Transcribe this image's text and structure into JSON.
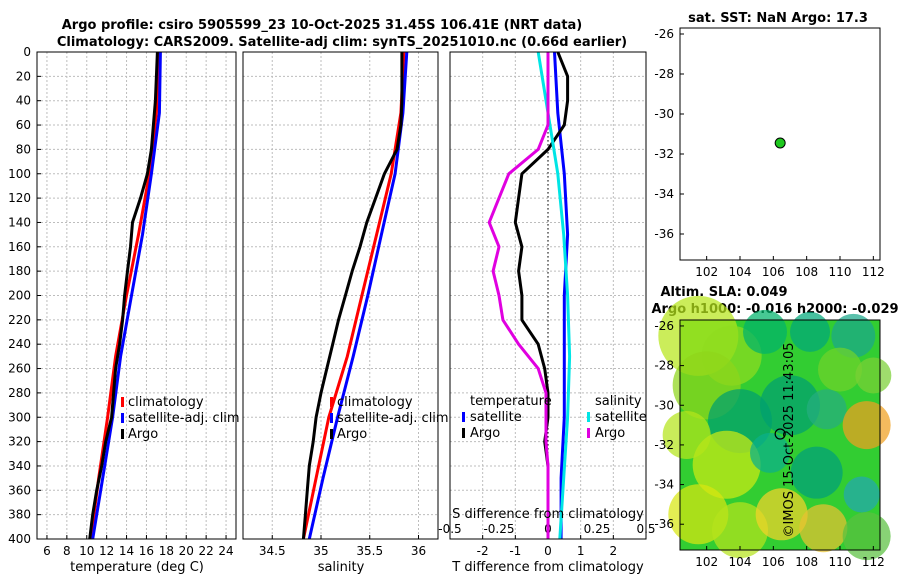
{
  "title": {
    "line1": "Argo profile: csiro 5905599_23 10-Oct-2025 31.45S 106.41E (NRT data)",
    "line2": "Climatology: CARS2009. Satellite-adj clim: synTS_20251010.nc (0.66d earlier)"
  },
  "copyright": "©IMOS 15-Oct-2025 11:43:05",
  "colors": {
    "red": "#ff0000",
    "blue": "#0000ff",
    "black": "#000000",
    "cyan": "#00e5e5",
    "magenta": "#e000e0",
    "dot": "#1ec81e"
  },
  "chart_data": [
    {
      "type": "line",
      "name": "temperature",
      "xlabel": "temperature (deg C)",
      "ylim": [
        0,
        400
      ],
      "xlim": [
        5,
        25
      ],
      "xticks": [
        "6",
        "8",
        "10",
        "12",
        "14",
        "16",
        "18",
        "20",
        "22",
        "24"
      ],
      "yticks": [
        "0",
        "20",
        "40",
        "60",
        "80",
        "100",
        "120",
        "140",
        "160",
        "180",
        "200",
        "220",
        "240",
        "260",
        "280",
        "300",
        "320",
        "340",
        "360",
        "380",
        "400"
      ],
      "legend": [
        "climatology",
        "satellite-adj. clim",
        "Argo"
      ],
      "series": [
        {
          "name": "climatology",
          "color": "red",
          "depth": [
            0,
            50,
            100,
            150,
            200,
            250,
            300,
            350,
            400
          ],
          "values": [
            17.2,
            17.0,
            16.3,
            15.2,
            14.0,
            12.9,
            12.1,
            11.2,
            10.4
          ]
        },
        {
          "name": "satellite-adj. clim",
          "color": "blue",
          "depth": [
            0,
            50,
            100,
            150,
            200,
            250,
            300,
            350,
            400
          ],
          "values": [
            17.4,
            17.3,
            16.5,
            15.6,
            14.5,
            13.4,
            12.6,
            11.6,
            10.6
          ]
        },
        {
          "name": "Argo",
          "color": "black",
          "depth": [
            0,
            20,
            40,
            60,
            80,
            100,
            120,
            140,
            160,
            180,
            200,
            220,
            240,
            260,
            280,
            300,
            320,
            340,
            360,
            380,
            400
          ],
          "values": [
            17.1,
            17.0,
            16.9,
            16.7,
            16.5,
            16.1,
            15.4,
            14.6,
            14.4,
            14.1,
            13.8,
            13.6,
            13.3,
            12.9,
            12.7,
            12.5,
            11.9,
            11.5,
            11.0,
            10.6,
            10.3
          ]
        }
      ]
    },
    {
      "type": "line",
      "name": "salinity",
      "xlabel": "salinity",
      "ylim": [
        0,
        400
      ],
      "xlim": [
        34.2,
        36.2
      ],
      "xticks": [
        "34.5",
        "35",
        "35.5",
        "36"
      ],
      "legend": [
        "climatology",
        "satellite-adj. clim",
        "Argo"
      ],
      "series": [
        {
          "name": "climatology",
          "color": "red",
          "depth": [
            0,
            50,
            100,
            150,
            200,
            250,
            300,
            350,
            400
          ],
          "values": [
            35.85,
            35.82,
            35.72,
            35.57,
            35.42,
            35.27,
            35.08,
            34.95,
            34.82
          ]
        },
        {
          "name": "satellite-adj. clim",
          "color": "blue",
          "depth": [
            0,
            50,
            100,
            150,
            200,
            250,
            300,
            350,
            400
          ],
          "values": [
            35.88,
            35.84,
            35.76,
            35.62,
            35.48,
            35.33,
            35.17,
            35.02,
            34.88
          ]
        },
        {
          "name": "Argo",
          "color": "black",
          "depth": [
            0,
            20,
            40,
            60,
            80,
            100,
            120,
            140,
            160,
            180,
            200,
            220,
            240,
            260,
            280,
            300,
            320,
            340,
            360,
            380,
            400
          ],
          "values": [
            35.83,
            35.83,
            35.83,
            35.82,
            35.78,
            35.65,
            35.56,
            35.47,
            35.4,
            35.32,
            35.25,
            35.18,
            35.12,
            35.06,
            35.0,
            34.95,
            34.92,
            34.88,
            34.86,
            34.84,
            34.82
          ]
        }
      ]
    },
    {
      "type": "line",
      "name": "differences",
      "xlabel": "T difference from climatology",
      "top_label": "S difference from climatology",
      "ylim": [
        0,
        400
      ],
      "xlim": [
        -3,
        3
      ],
      "xticks": [
        "-2",
        "-1",
        "0",
        "1",
        "2"
      ],
      "top_ticks": [
        "-0.5",
        "-0.25",
        "0",
        "0.25",
        "0.5"
      ],
      "legend_temperature": {
        "title": "temperature",
        "items": [
          "satellite",
          "Argo"
        ]
      },
      "legend_salinity": {
        "title": "salinity",
        "items": [
          "satellite",
          "Argo"
        ]
      },
      "series": [
        {
          "name": "T satellite",
          "color": "blue",
          "depth": [
            0,
            50,
            100,
            150,
            200,
            250,
            300,
            350,
            400
          ],
          "values": [
            0.2,
            0.3,
            0.5,
            0.6,
            0.5,
            0.5,
            0.5,
            0.4,
            0.4
          ]
        },
        {
          "name": "T Argo",
          "color": "black",
          "depth": [
            0,
            20,
            40,
            60,
            80,
            100,
            120,
            140,
            160,
            180,
            200,
            220,
            240,
            260,
            280,
            300,
            320,
            340,
            360,
            380,
            400
          ],
          "values": [
            0.3,
            0.6,
            0.6,
            0.5,
            0.0,
            -0.8,
            -0.9,
            -1.0,
            -0.8,
            -0.9,
            -0.8,
            -0.8,
            -0.3,
            -0.1,
            0.0,
            0.0,
            -0.1,
            0.0,
            0.0,
            0.0,
            0.0
          ]
        },
        {
          "name": "S satellite",
          "color": "cyan",
          "depth": [
            0,
            50,
            100,
            150,
            200,
            250,
            300,
            350,
            400
          ],
          "values": [
            -0.05,
            0.0,
            0.05,
            0.08,
            0.1,
            0.11,
            0.1,
            0.08,
            0.06
          ]
        },
        {
          "name": "S Argo",
          "color": "magenta",
          "depth": [
            0,
            20,
            40,
            60,
            80,
            100,
            120,
            140,
            160,
            180,
            200,
            220,
            240,
            260,
            280,
            300,
            320,
            340,
            360,
            380,
            400
          ],
          "values": [
            0.0,
            0.0,
            0.0,
            0.0,
            -0.05,
            -0.2,
            -0.25,
            -0.3,
            -0.25,
            -0.28,
            -0.25,
            -0.23,
            -0.15,
            -0.05,
            -0.01,
            -0.01,
            -0.01,
            0.0,
            0.0,
            0.0,
            0.0
          ]
        }
      ]
    },
    {
      "type": "scatter",
      "name": "sst_map",
      "title": "sat. SST: NaN Argo: 17.3",
      "xlim": [
        100.4,
        112.4
      ],
      "ylim": [
        -37.3,
        -25.7
      ],
      "xticks": [
        "102",
        "104",
        "106",
        "108",
        "110",
        "112"
      ],
      "yticks": [
        "-26",
        "-28",
        "-30",
        "-32",
        "-34",
        "-36"
      ],
      "point": {
        "lon": 106.41,
        "lat": -31.45
      }
    },
    {
      "type": "heatmap",
      "name": "sla_map",
      "title_line1": "Altim. SLA: 0.049",
      "title_line2": "Argo h1000: -0.016 h2000: -0.029",
      "xlim": [
        100.4,
        112.4
      ],
      "ylim": [
        -37.3,
        -25.7
      ],
      "xticks": [
        "102",
        "104",
        "106",
        "108",
        "110",
        "112"
      ],
      "yticks": [
        "-26",
        "-28",
        "-30",
        "-32",
        "-34",
        "-36"
      ],
      "point": {
        "lon": 106.41,
        "lat": -31.45
      }
    }
  ]
}
